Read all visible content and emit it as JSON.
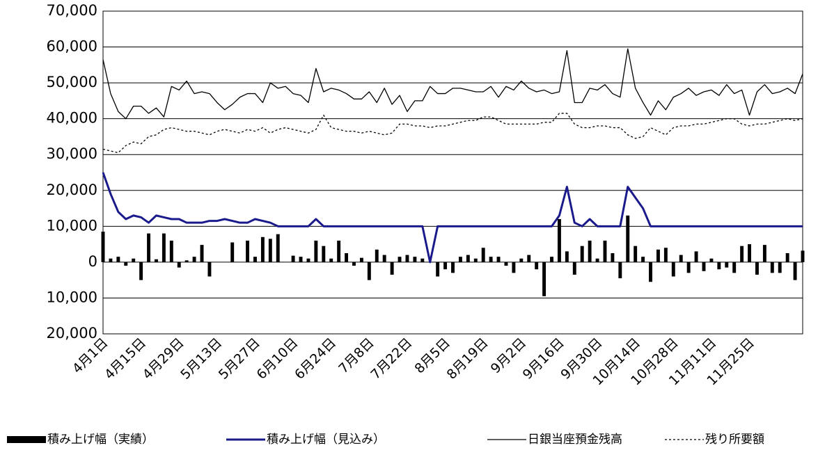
{
  "chart_data": {
    "type": "combo",
    "categories": [
      "4月1日",
      null,
      null,
      null,
      null,
      "4月15日",
      null,
      null,
      null,
      null,
      "4月29日",
      null,
      null,
      null,
      null,
      "5月13日",
      null,
      null,
      null,
      null,
      "5月27日",
      null,
      null,
      null,
      null,
      "6月10日",
      null,
      null,
      null,
      null,
      "6月24日",
      null,
      null,
      null,
      null,
      "7月8日",
      null,
      null,
      null,
      null,
      "7月22日",
      null,
      null,
      null,
      null,
      "8月5日",
      null,
      null,
      null,
      null,
      "8月19日",
      null,
      null,
      null,
      null,
      "9月2日",
      null,
      null,
      null,
      null,
      "9月16日",
      null,
      null,
      null,
      null,
      "9月30日",
      null,
      null,
      null,
      null,
      "10月14日",
      null,
      null,
      null,
      null,
      "10月28日",
      null,
      null,
      null,
      null,
      "11月11日",
      null,
      null,
      null,
      null,
      "11月25日",
      null,
      null,
      null,
      null,
      null,
      null,
      null
    ],
    "series": [
      {
        "name": "積み上げ幅（実績）",
        "type": "bar",
        "color": "#000000",
        "values": [
          8500,
          1000,
          1500,
          -1000,
          1000,
          -5000,
          8000,
          800,
          8000,
          6000,
          -1500,
          500,
          1500,
          4800,
          -4000,
          0,
          0,
          5500,
          0,
          6000,
          1500,
          7000,
          6500,
          7800,
          0,
          1800,
          1500,
          1000,
          6000,
          4500,
          1000,
          6000,
          2500,
          -1000,
          1200,
          -5000,
          3500,
          2000,
          -3500,
          1500,
          2000,
          1500,
          1000,
          0,
          -4000,
          -2000,
          -3000,
          1500,
          2000,
          1000,
          4000,
          1500,
          1500,
          -1000,
          -3000,
          1000,
          2000,
          -2000,
          -9500,
          1500,
          12000,
          3000,
          -3500,
          4500,
          6000,
          1000,
          6000,
          2500,
          -4500,
          13000,
          4500,
          1500,
          -5500,
          3500,
          4000,
          -4000,
          2000,
          -3000,
          3000,
          -2500,
          1000,
          -2000,
          -1500,
          -3000,
          4500,
          5000,
          -3500,
          4800,
          -3000,
          -3000,
          2500,
          -5000,
          3200
        ]
      },
      {
        "name": "積み上げ幅（見込み）",
        "type": "line",
        "color": "#1a1a8c",
        "width": 3,
        "style": "solid",
        "values": [
          25000,
          19000,
          14000,
          12000,
          13000,
          12500,
          11000,
          13000,
          12500,
          12000,
          12000,
          11000,
          11000,
          11000,
          11500,
          11500,
          12000,
          11500,
          11000,
          11000,
          12000,
          11500,
          11000,
          10000,
          10000,
          10000,
          10000,
          10000,
          12000,
          10000,
          10000,
          10000,
          10000,
          10000,
          10000,
          10000,
          10000,
          10000,
          10000,
          10000,
          10000,
          10000,
          10000,
          0,
          10000,
          10000,
          10000,
          10000,
          10000,
          10000,
          10000,
          10000,
          10000,
          10000,
          10000,
          10000,
          10000,
          10000,
          10000,
          10000,
          13000,
          21000,
          11000,
          10000,
          12000,
          10000,
          10000,
          10000,
          10000,
          21000,
          18000,
          15000,
          10000,
          10000,
          10000,
          10000,
          10000,
          10000,
          10000,
          10000,
          10000,
          10000,
          10000,
          10000,
          10000,
          10000,
          10000,
          10000,
          10000,
          10000,
          10000,
          10000,
          10000
        ]
      },
      {
        "name": "日銀当座預金残高",
        "type": "line",
        "color": "#000000",
        "width": 1.3,
        "style": "solid",
        "values": [
          56500,
          47000,
          42000,
          40000,
          43500,
          43500,
          41500,
          43000,
          40500,
          49000,
          48000,
          50500,
          47000,
          47500,
          47000,
          44500,
          42500,
          44000,
          46000,
          47000,
          47000,
          44500,
          50000,
          48500,
          49000,
          47000,
          46500,
          44500,
          54000,
          47500,
          48500,
          48000,
          47000,
          45500,
          45500,
          47500,
          44500,
          48500,
          44000,
          46500,
          42000,
          45000,
          45000,
          49000,
          47000,
          47000,
          48500,
          48500,
          48000,
          47500,
          47500,
          49000,
          46000,
          49000,
          48000,
          50500,
          48500,
          47500,
          48000,
          47000,
          47500,
          59000,
          44500,
          44500,
          48500,
          48000,
          49500,
          47000,
          46000,
          59500,
          48500,
          44500,
          41000,
          45000,
          42500,
          46000,
          47000,
          48500,
          46500,
          47500,
          48000,
          46500,
          49500,
          47000,
          48000,
          41000,
          47500,
          49500,
          47000,
          47500,
          48500,
          47000,
          52500
        ]
      },
      {
        "name": "残り所要額",
        "type": "line",
        "color": "#000000",
        "width": 1.3,
        "style": "dotted",
        "values": [
          31500,
          31000,
          30500,
          32500,
          33500,
          33000,
          35000,
          35500,
          37000,
          37500,
          37000,
          36500,
          36500,
          36000,
          35500,
          36500,
          37000,
          36500,
          36000,
          37000,
          36500,
          37500,
          36000,
          37000,
          37500,
          37000,
          36500,
          36000,
          37000,
          41000,
          37500,
          37000,
          36500,
          36500,
          36000,
          36500,
          36000,
          35500,
          36000,
          38500,
          38500,
          38000,
          38000,
          37500,
          38000,
          38000,
          38500,
          39000,
          39500,
          39500,
          40500,
          40500,
          39500,
          38500,
          38500,
          38500,
          38500,
          38500,
          39000,
          39000,
          41500,
          41500,
          38500,
          37500,
          37500,
          38000,
          38000,
          37500,
          37500,
          35500,
          34500,
          35000,
          37500,
          36500,
          35500,
          37500,
          38000,
          38000,
          38500,
          38500,
          39000,
          39500,
          40000,
          40000,
          38500,
          38000,
          38500,
          38500,
          39000,
          39500,
          40000,
          39500,
          40000
        ]
      }
    ],
    "ylim": [
      -20000,
      70000
    ],
    "yticks": [
      {
        "value": -20000,
        "label": "20,000"
      },
      {
        "value": -10000,
        "label": "10,000"
      },
      0,
      {
        "value": 10000,
        "label": "10,000"
      },
      {
        "value": 20000,
        "label": "20,000"
      },
      {
        "value": 30000,
        "label": "30,000"
      },
      {
        "value": 40000,
        "label": "40,000"
      },
      {
        "value": 50000,
        "label": "50,000"
      },
      {
        "value": 60000,
        "label": "60,000"
      },
      {
        "value": 70000,
        "label": "70,000"
      }
    ],
    "grid": true,
    "legend": "bottom"
  }
}
